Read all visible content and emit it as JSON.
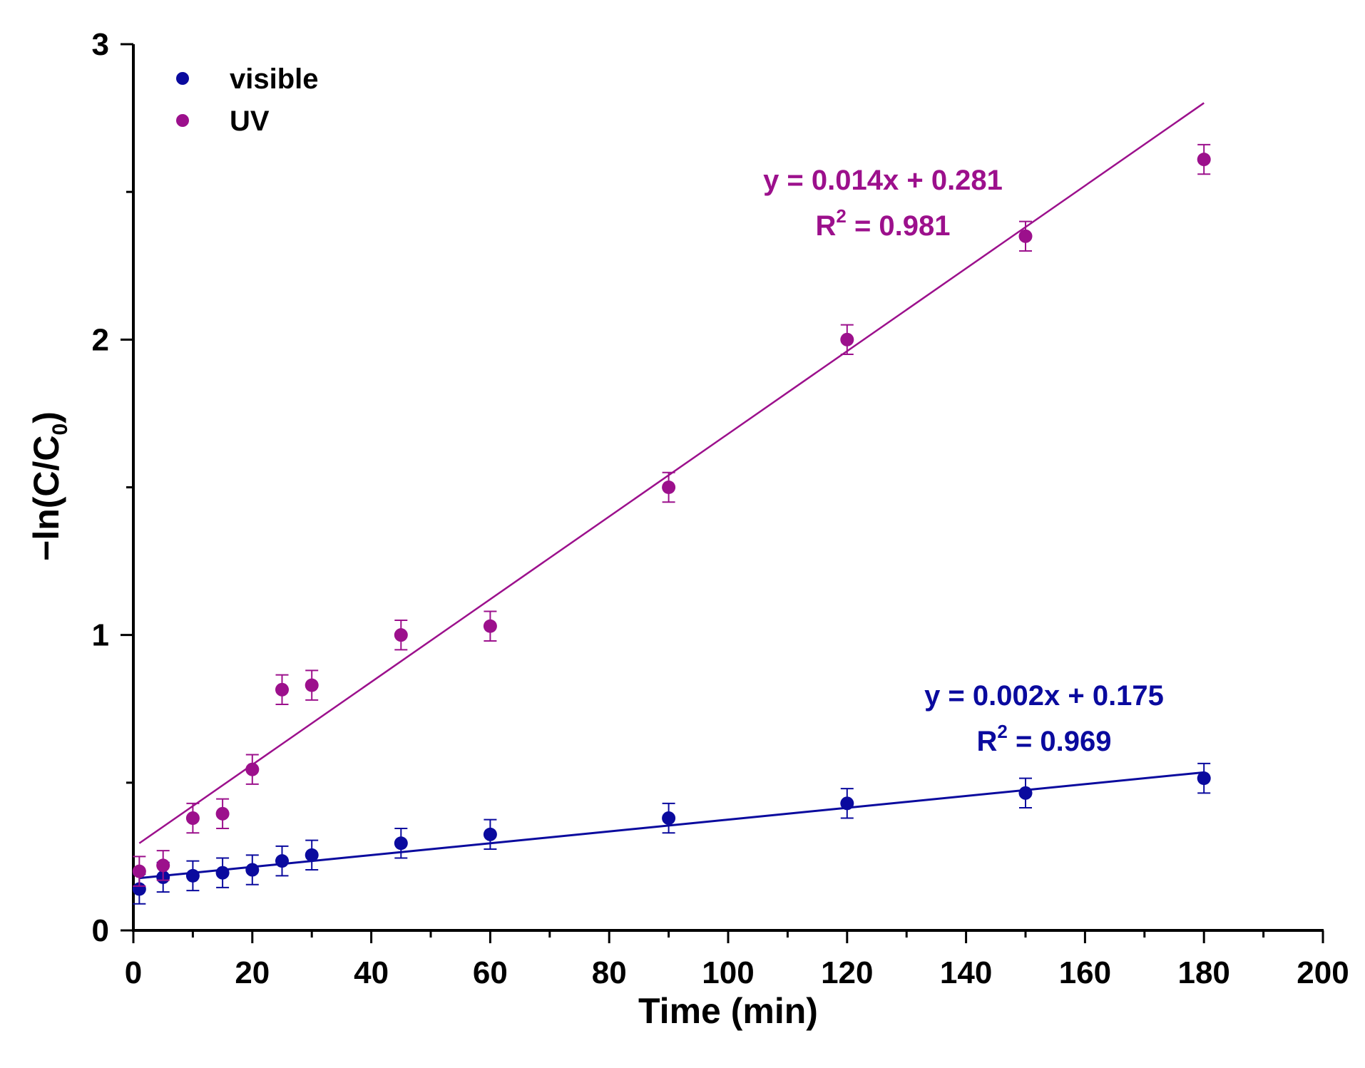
{
  "chart_data": {
    "type": "scatter",
    "xlabel": "Time (min)",
    "ylabel": {
      "prefix": "−ln(C/C",
      "subscript": "0",
      "suffix": ")"
    },
    "xlim": [
      0,
      200
    ],
    "ylim": [
      0,
      3
    ],
    "xticks": [
      0,
      20,
      40,
      60,
      80,
      100,
      120,
      140,
      160,
      180,
      200
    ],
    "yticks": [
      0,
      1,
      2,
      3
    ],
    "legend_position": "top-left",
    "series": [
      {
        "name": "visible",
        "color": "#0a0a9e",
        "x": [
          1,
          5,
          10,
          15,
          20,
          25,
          30,
          45,
          60,
          90,
          120,
          150,
          180
        ],
        "y": [
          0.14,
          0.18,
          0.185,
          0.195,
          0.205,
          0.235,
          0.255,
          0.295,
          0.325,
          0.38,
          0.43,
          0.465,
          0.515
        ],
        "error": [
          0.05,
          0.05,
          0.05,
          0.05,
          0.05,
          0.05,
          0.05,
          0.05,
          0.05,
          0.05,
          0.05,
          0.05,
          0.05
        ],
        "fit": {
          "slope": 0.002,
          "intercept": 0.175,
          "x_range": [
            1,
            180
          ]
        },
        "annotation": {
          "equation": "y = 0.002x + 0.175",
          "r2_prefix": "R",
          "r2_sup": "2",
          "r2_value": " = 0.969"
        }
      },
      {
        "name": "UV",
        "color": "#9c108c",
        "x": [
          1,
          5,
          10,
          15,
          20,
          25,
          30,
          45,
          60,
          90,
          120,
          150,
          180
        ],
        "y": [
          0.2,
          0.22,
          0.38,
          0.395,
          0.545,
          0.815,
          0.83,
          1.0,
          1.03,
          1.5,
          2.0,
          2.35,
          2.61
        ],
        "error": [
          0.05,
          0.05,
          0.05,
          0.05,
          0.05,
          0.05,
          0.05,
          0.05,
          0.05,
          0.05,
          0.05,
          0.05,
          0.05
        ],
        "fit": {
          "slope": 0.014,
          "intercept": 0.281,
          "x_range": [
            1,
            180
          ]
        },
        "annotation": {
          "equation": "y = 0.014x + 0.281",
          "r2_prefix": "R",
          "r2_sup": "2",
          "r2_value": " = 0.981"
        }
      }
    ]
  }
}
